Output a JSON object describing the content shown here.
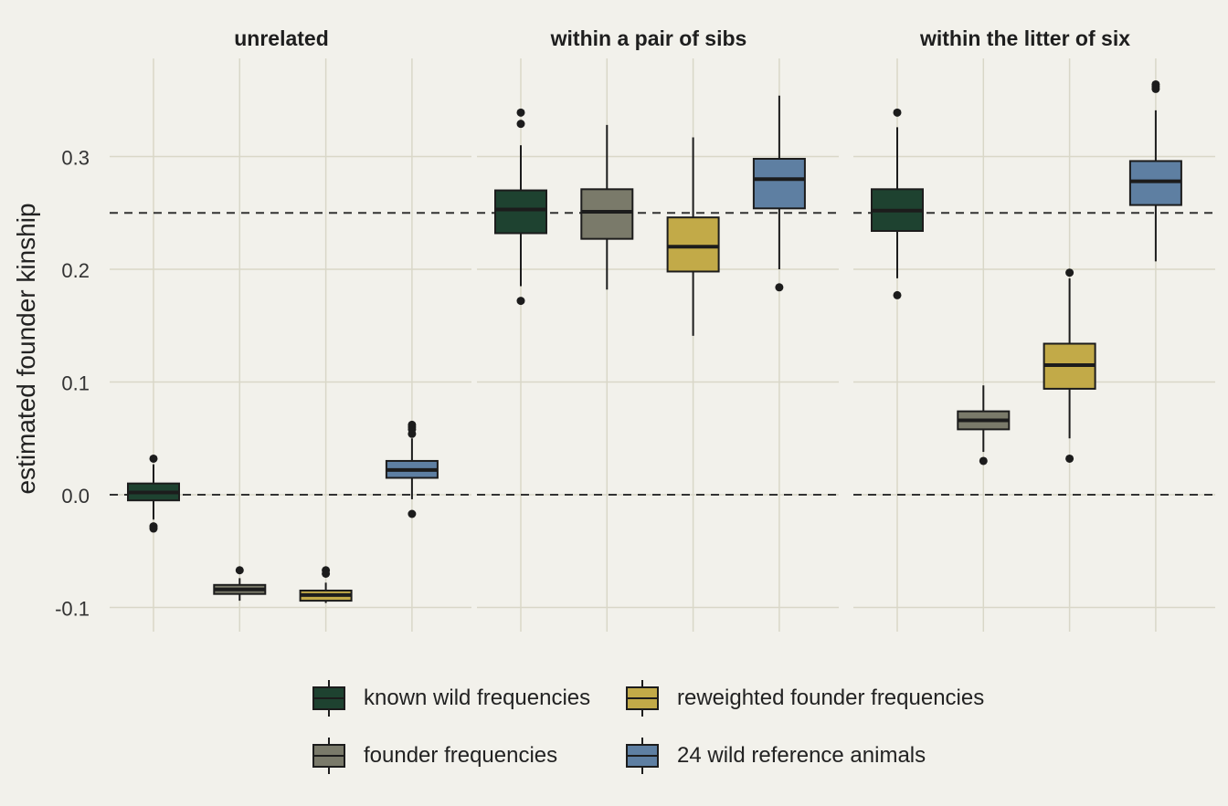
{
  "chart_data": {
    "type": "box",
    "ylabel": "estimated founder kinship",
    "ylim": [
      -0.12,
      0.385
    ],
    "yticks": [
      -0.1,
      0.0,
      0.1,
      0.2,
      0.3
    ],
    "ytick_labels": [
      "-0.1",
      "0.0",
      "0.1",
      "0.2",
      "0.3"
    ],
    "reference_lines": [
      0.0,
      0.25
    ],
    "grid": true,
    "legend_position": "bottom",
    "series": [
      {
        "name": "known wild frequencies",
        "color": "#1e4230"
      },
      {
        "name": "founder frequencies",
        "color": "#7a7a6a"
      },
      {
        "name": "reweighted founder frequencies",
        "color": "#c2aa48"
      },
      {
        "name": "24 wild reference animals",
        "color": "#5e7fa2"
      }
    ],
    "facets": [
      {
        "title": "unrelated",
        "boxes": [
          {
            "series": 0,
            "whisker_low": -0.022,
            "q1": -0.005,
            "median": 0.002,
            "q3": 0.01,
            "whisker_high": 0.027,
            "outliers": [
              0.032,
              -0.028,
              -0.03
            ]
          },
          {
            "series": 1,
            "whisker_low": -0.094,
            "q1": -0.088,
            "median": -0.084,
            "q3": -0.08,
            "whisker_high": -0.074,
            "outliers": [
              -0.067
            ]
          },
          {
            "series": 2,
            "whisker_low": -0.096,
            "q1": -0.094,
            "median": -0.089,
            "q3": -0.085,
            "whisker_high": -0.078,
            "outliers": [
              -0.067,
              -0.07
            ]
          },
          {
            "series": 3,
            "whisker_low": -0.004,
            "q1": 0.015,
            "median": 0.022,
            "q3": 0.03,
            "whisker_high": 0.05,
            "outliers": [
              0.062,
              0.06,
              0.058,
              0.054,
              -0.017
            ]
          }
        ]
      },
      {
        "title": "within a pair of sibs",
        "boxes": [
          {
            "series": 0,
            "whisker_low": 0.185,
            "q1": 0.232,
            "median": 0.253,
            "q3": 0.27,
            "whisker_high": 0.31,
            "outliers": [
              0.339,
              0.329,
              0.172
            ]
          },
          {
            "series": 1,
            "whisker_low": 0.182,
            "q1": 0.227,
            "median": 0.251,
            "q3": 0.271,
            "whisker_high": 0.328,
            "outliers": []
          },
          {
            "series": 2,
            "whisker_low": 0.141,
            "q1": 0.198,
            "median": 0.22,
            "q3": 0.246,
            "whisker_high": 0.317,
            "outliers": []
          },
          {
            "series": 3,
            "whisker_low": 0.2,
            "q1": 0.254,
            "median": 0.28,
            "q3": 0.298,
            "whisker_high": 0.354,
            "outliers": [
              0.184
            ]
          }
        ]
      },
      {
        "title": "within the litter of six",
        "boxes": [
          {
            "series": 0,
            "whisker_low": 0.192,
            "q1": 0.234,
            "median": 0.252,
            "q3": 0.271,
            "whisker_high": 0.326,
            "outliers": [
              0.339,
              0.177
            ]
          },
          {
            "series": 1,
            "whisker_low": 0.038,
            "q1": 0.058,
            "median": 0.066,
            "q3": 0.074,
            "whisker_high": 0.097,
            "outliers": [
              0.03
            ]
          },
          {
            "series": 2,
            "whisker_low": 0.05,
            "q1": 0.094,
            "median": 0.115,
            "q3": 0.134,
            "whisker_high": 0.192,
            "outliers": [
              0.197,
              0.032
            ]
          },
          {
            "series": 3,
            "whisker_low": 0.207,
            "q1": 0.257,
            "median": 0.278,
            "q3": 0.296,
            "whisker_high": 0.341,
            "outliers": [
              0.364,
              0.362,
              0.36
            ]
          }
        ]
      }
    ]
  }
}
